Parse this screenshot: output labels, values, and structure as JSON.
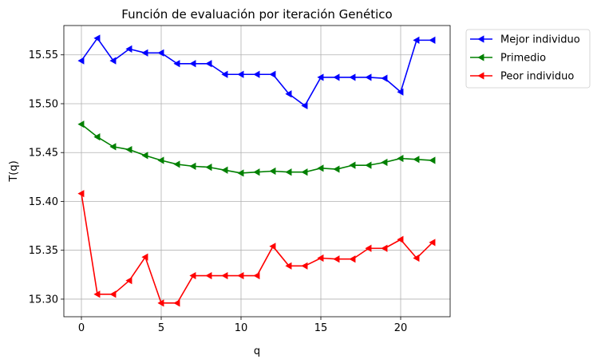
{
  "chart_data": {
    "type": "line",
    "title": "Función de evaluación por iteración Genético",
    "xlabel": "q",
    "ylabel": "T(q)",
    "xlim": [
      -1.1,
      23.1
    ],
    "ylim": [
      15.282,
      15.58
    ],
    "xticks": [
      0,
      5,
      10,
      15,
      20
    ],
    "yticks": [
      15.3,
      15.35,
      15.4,
      15.45,
      15.5,
      15.55
    ],
    "ytick_labels": [
      "15.30",
      "15.35",
      "15.40",
      "15.45",
      "15.50",
      "15.55"
    ],
    "grid": true,
    "legend_position": "outside-top-right",
    "marker": "triangle-left",
    "x": [
      0,
      1,
      2,
      3,
      4,
      5,
      6,
      7,
      8,
      9,
      10,
      11,
      12,
      13,
      14,
      15,
      16,
      17,
      18,
      19,
      20,
      21,
      22
    ],
    "series": [
      {
        "name": "Mejor individuo",
        "color": "#0000ff",
        "values": [
          15.544,
          15.567,
          15.544,
          15.556,
          15.552,
          15.552,
          15.541,
          15.541,
          15.541,
          15.53,
          15.53,
          15.53,
          15.53,
          15.51,
          15.498,
          15.527,
          15.527,
          15.527,
          15.527,
          15.526,
          15.512,
          15.565,
          15.565
        ]
      },
      {
        "name": "Primedio",
        "color": "#008000",
        "values": [
          15.479,
          15.466,
          15.456,
          15.453,
          15.447,
          15.442,
          15.438,
          15.436,
          15.435,
          15.432,
          15.429,
          15.43,
          15.431,
          15.43,
          15.43,
          15.434,
          15.433,
          15.437,
          15.437,
          15.44,
          15.444,
          15.443,
          15.442
        ]
      },
      {
        "name": "Peor individuo",
        "color": "#ff0000",
        "values": [
          15.408,
          15.305,
          15.305,
          15.319,
          15.343,
          15.296,
          15.296,
          15.324,
          15.324,
          15.324,
          15.324,
          15.324,
          15.354,
          15.334,
          15.334,
          15.342,
          15.341,
          15.341,
          15.352,
          15.352,
          15.361,
          15.342,
          15.358
        ]
      }
    ]
  }
}
